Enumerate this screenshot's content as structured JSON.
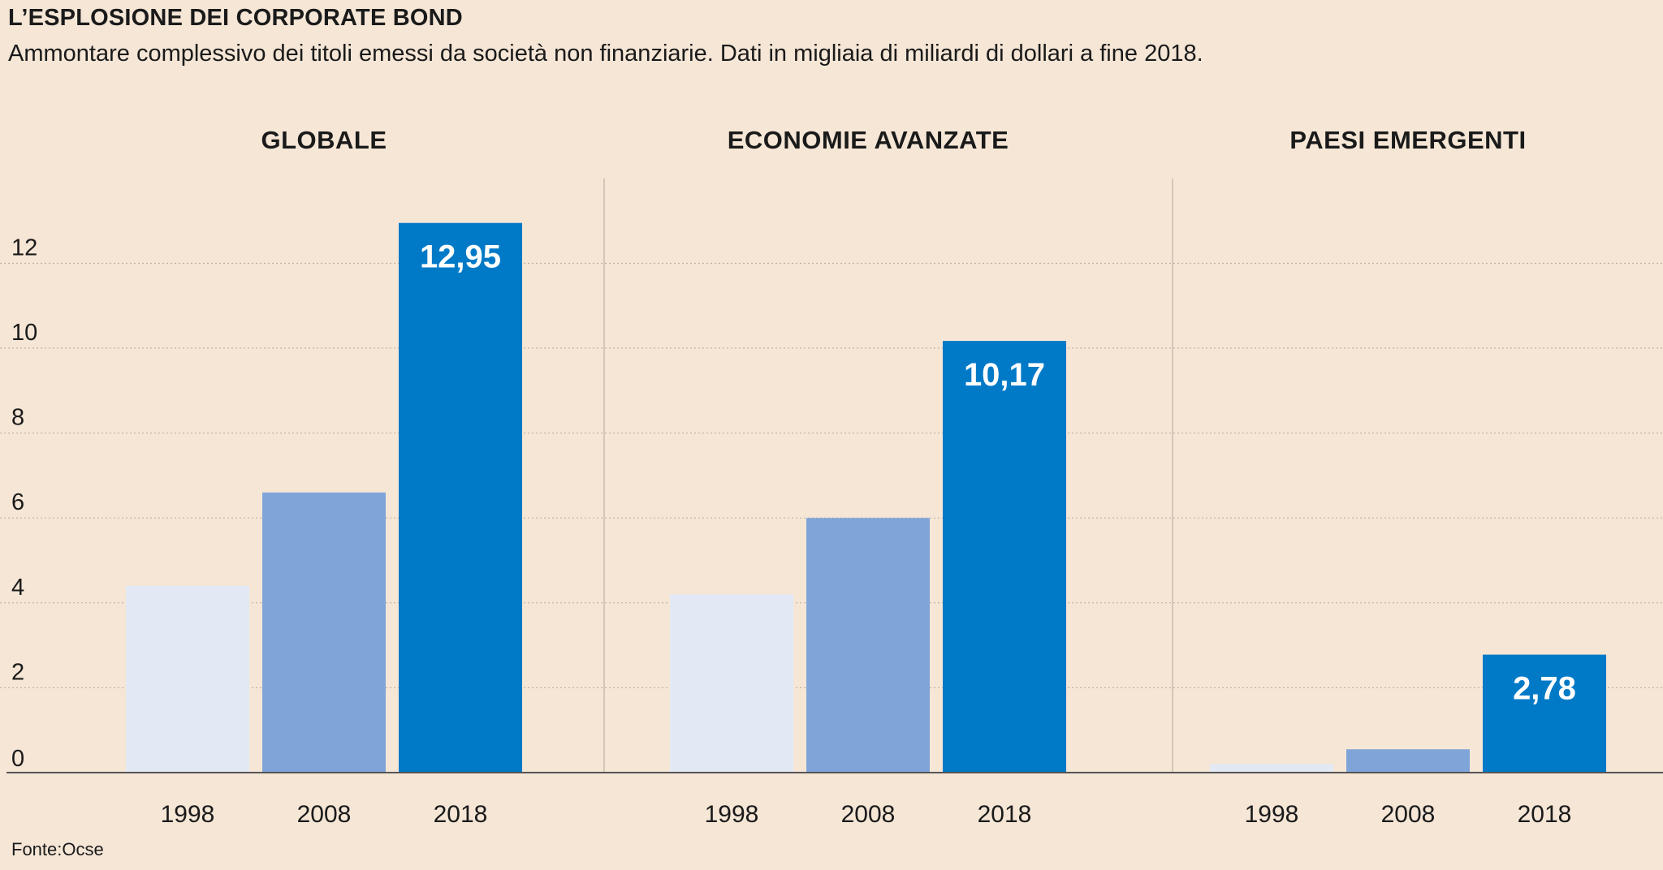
{
  "header": {
    "title": "L’ESPLOSIONE DEI CORPORATE BOND",
    "subtitle": "Ammontare complessivo dei titoli emessi da società non finanziarie. Dati in migliaia di miliardi di dollari a fine 2018."
  },
  "footer": {
    "source": "Fonte:Ocse"
  },
  "colors": {
    "background": "#f5e6d6",
    "bar_1998": "#e2e8f4",
    "bar_2008": "#7fa5d8",
    "bar_2018": "#007ac7",
    "gridline": "#b5aa9e",
    "divider": "#c9bcae",
    "axis": "#555555",
    "value_label": "#ffffff"
  },
  "chart_data": {
    "type": "bar",
    "yticks": [
      0,
      2,
      4,
      6,
      8,
      10,
      12
    ],
    "ylim": [
      0,
      14
    ],
    "grid": true,
    "panels": [
      {
        "title": "GLOBALE",
        "categories": [
          "1998",
          "2008",
          "2018"
        ],
        "values": [
          4.4,
          6.6,
          12.95
        ],
        "labels": [
          "",
          "",
          "12,95"
        ]
      },
      {
        "title": "ECONOMIE AVANZATE",
        "categories": [
          "1998",
          "2008",
          "2018"
        ],
        "values": [
          4.2,
          6.0,
          10.17
        ],
        "labels": [
          "",
          "",
          "10,17"
        ]
      },
      {
        "title": "PAESI EMERGENTI",
        "categories": [
          "1998",
          "2008",
          "2018"
        ],
        "values": [
          0.2,
          0.55,
          2.78
        ],
        "labels": [
          "",
          "",
          "2,78"
        ]
      }
    ]
  }
}
